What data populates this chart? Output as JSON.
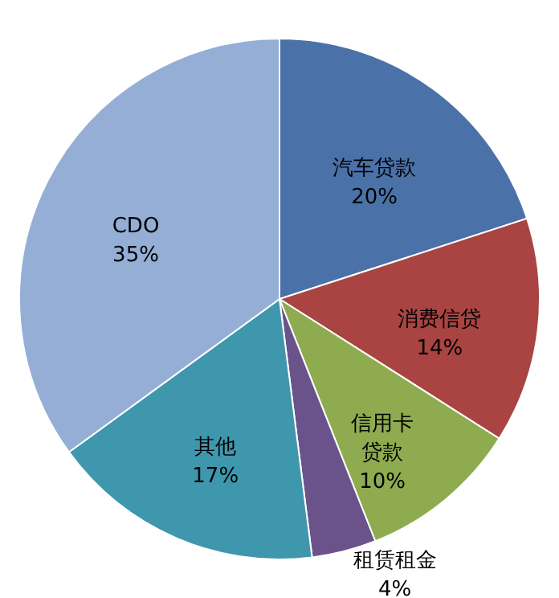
{
  "chart_data": {
    "type": "pie",
    "categories": [
      "汽车贷款",
      "消费信贷",
      "信用卡贷款",
      "租赁租金",
      "其他",
      "CDO"
    ],
    "values": [
      20,
      14,
      10,
      4,
      17,
      35
    ],
    "value_labels": [
      "20%",
      "14%",
      "10%",
      "4%",
      "17%",
      "35%"
    ],
    "colors": [
      "#4a72a8",
      "#a94442",
      "#8eab4f",
      "#6a538a",
      "#3f97ad",
      "#94aed6"
    ]
  }
}
